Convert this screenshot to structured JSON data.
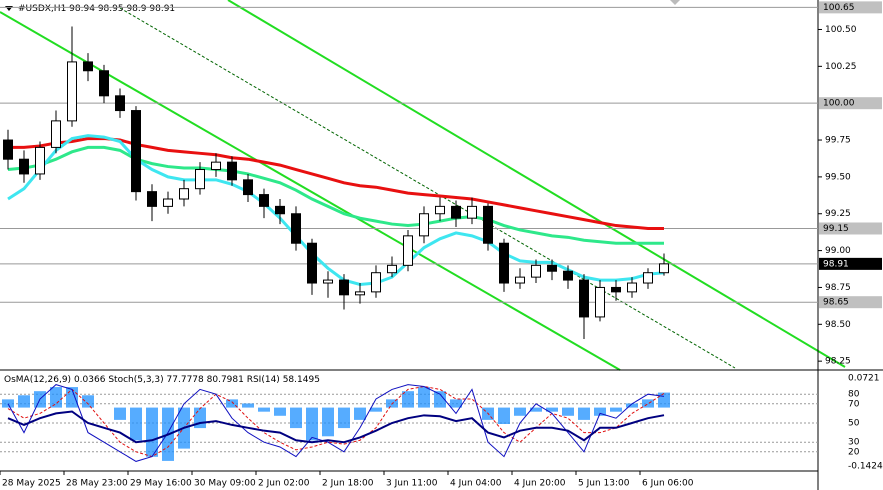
{
  "chart_data": {
    "type": "candlestick",
    "title": "#USDX,H1",
    "last_bar": [
      98.94,
      98.95,
      98.9,
      98.91
    ],
    "categories": [
      "28 May 2025",
      null,
      null,
      null,
      "28 May 23:00",
      null,
      null,
      null,
      "29 May 16:00",
      null,
      null,
      null,
      "30 May 09:00",
      null,
      null,
      null,
      "2 Jun 02:00",
      null,
      null,
      null,
      "2 Jun 18:00",
      null,
      null,
      null,
      "3 Jun 11:00",
      null,
      null,
      null,
      "4 Jun 04:00",
      null,
      null,
      null,
      "4 Jun 20:00",
      null,
      null,
      null,
      "5 Jun 13:00",
      null,
      null,
      null,
      "6 Jun 06:00",
      null
    ],
    "open": [
      99.75,
      99.62,
      99.52,
      99.7,
      99.88,
      100.28,
      100.22,
      100.05,
      99.95,
      99.4,
      99.3,
      99.35,
      99.42,
      99.55,
      99.6,
      99.48,
      99.38,
      99.3,
      99.25,
      99.05,
      98.78,
      98.8,
      98.7,
      98.72,
      98.85,
      98.9,
      99.1,
      99.25,
      99.3,
      99.22,
      99.3,
      99.05,
      98.78,
      98.82,
      98.9,
      98.86,
      98.8,
      98.55,
      98.75,
      98.72,
      98.78,
      98.85
    ],
    "high": [
      99.82,
      99.68,
      99.74,
      99.95,
      100.52,
      100.34,
      100.26,
      100.1,
      99.98,
      99.45,
      99.4,
      99.48,
      99.6,
      99.66,
      99.64,
      99.52,
      99.42,
      99.35,
      99.3,
      99.08,
      98.86,
      98.84,
      98.78,
      98.9,
      98.96,
      99.14,
      99.3,
      99.36,
      99.34,
      99.36,
      99.32,
      99.08,
      98.88,
      98.94,
      98.94,
      98.9,
      98.84,
      98.8,
      98.8,
      98.82,
      98.88,
      98.98
    ],
    "low": [
      99.55,
      99.46,
      99.48,
      99.66,
      99.84,
      100.15,
      100.0,
      99.9,
      99.34,
      99.2,
      99.25,
      99.3,
      99.38,
      99.5,
      99.44,
      99.33,
      99.22,
      99.18,
      99.0,
      98.7,
      98.68,
      98.6,
      98.64,
      98.68,
      98.82,
      98.86,
      99.05,
      99.2,
      99.16,
      99.18,
      99.0,
      98.72,
      98.74,
      98.78,
      98.8,
      98.74,
      98.4,
      98.52,
      98.66,
      98.68,
      98.74,
      98.83
    ],
    "close": [
      99.62,
      99.52,
      99.7,
      99.88,
      100.28,
      100.22,
      100.05,
      99.95,
      99.4,
      99.3,
      99.35,
      99.42,
      99.55,
      99.6,
      99.48,
      99.38,
      99.3,
      99.25,
      99.05,
      98.78,
      98.8,
      98.7,
      98.72,
      98.85,
      98.9,
      99.1,
      99.25,
      99.3,
      99.22,
      99.3,
      99.05,
      98.78,
      98.82,
      98.9,
      98.86,
      98.8,
      98.55,
      98.75,
      98.72,
      98.78,
      98.85,
      98.91
    ],
    "series": [
      {
        "color": "#e81010",
        "values": [
          99.7,
          99.7,
          99.71,
          99.73,
          99.74,
          99.76,
          99.76,
          99.75,
          99.72,
          99.7,
          99.68,
          99.67,
          99.66,
          99.65,
          99.63,
          99.62,
          99.6,
          99.58,
          99.55,
          99.52,
          99.49,
          99.46,
          99.44,
          99.43,
          99.41,
          99.39,
          99.38,
          99.37,
          99.36,
          99.35,
          99.33,
          99.31,
          99.29,
          99.27,
          99.25,
          99.23,
          99.21,
          99.19,
          99.17,
          99.16,
          99.15,
          99.15
        ]
      },
      {
        "color": "#2ee88a",
        "values": [
          99.55,
          99.56,
          99.58,
          99.62,
          99.67,
          99.7,
          99.7,
          99.68,
          99.62,
          99.59,
          99.57,
          99.56,
          99.56,
          99.55,
          99.54,
          99.52,
          99.49,
          99.46,
          99.41,
          99.35,
          99.3,
          99.25,
          99.22,
          99.2,
          99.18,
          99.17,
          99.18,
          99.2,
          99.22,
          99.23,
          99.21,
          99.17,
          99.14,
          99.12,
          99.1,
          99.09,
          99.07,
          99.06,
          99.05,
          99.05,
          99.05,
          99.05
        ]
      },
      {
        "color": "#3ee6f0",
        "values": [
          99.35,
          99.42,
          99.55,
          99.68,
          99.76,
          99.78,
          99.77,
          99.74,
          99.62,
          99.55,
          99.5,
          99.48,
          99.48,
          99.48,
          99.45,
          99.4,
          99.32,
          99.22,
          99.1,
          98.98,
          98.88,
          98.8,
          98.77,
          98.78,
          98.82,
          98.92,
          99.02,
          99.08,
          99.12,
          99.1,
          99.06,
          98.98,
          98.93,
          98.92,
          98.92,
          98.87,
          98.82,
          98.8,
          98.8,
          98.81,
          98.84,
          98.85
        ]
      }
    ],
    "ylim": [
      98.19,
      100.7
    ],
    "yticks": [
      98.25,
      {
        "value": 98.5,
        "label": "98.50"
      },
      98.75,
      {
        "value": 99.0,
        "label": "99.00"
      },
      99.25,
      {
        "value": 99.5,
        "label": "99.50"
      },
      99.75,
      100.25,
      {
        "value": 100.5,
        "label": "100.50"
      }
    ],
    "levels": [
      {
        "value": 100.65,
        "label": "100.65"
      },
      {
        "value": 100.0,
        "label": "100.00"
      },
      {
        "value": 99.15,
        "label": "99.15"
      },
      {
        "value": 98.91,
        "label": "98.91"
      },
      {
        "value": 98.65,
        "label": "98.65"
      }
    ],
    "current": 98.91,
    "indicator": {
      "osma_name": "OsMA(12,26,9)",
      "stoch_name": "Stoch(5,3,3)",
      "rsi_name": "RSI(14)",
      "osma_color": "#1e90ff",
      "stoch_color": "#1010c0",
      "signal_color": "#e01010",
      "rsi_color": "#000080",
      "osma": [
        0.02,
        0.03,
        0.04,
        0.05,
        0.05,
        0.03,
        0.0,
        -0.03,
        -0.08,
        -0.12,
        -0.13,
        -0.1,
        -0.05,
        0.0,
        0.02,
        0.01,
        -0.01,
        -0.02,
        -0.05,
        -0.08,
        -0.07,
        -0.05,
        -0.03,
        -0.01,
        0.02,
        0.04,
        0.05,
        0.04,
        0.02,
        0.0,
        -0.03,
        -0.04,
        -0.02,
        -0.01,
        -0.01,
        -0.02,
        -0.03,
        -0.02,
        -0.01,
        0.01,
        0.02,
        0.0366
      ],
      "stoch": [
        70,
        40,
        75,
        90,
        85,
        40,
        30,
        20,
        10,
        15,
        40,
        70,
        85,
        80,
        55,
        40,
        30,
        25,
        15,
        35,
        30,
        20,
        45,
        75,
        85,
        90,
        88,
        80,
        60,
        85,
        30,
        15,
        50,
        70,
        60,
        40,
        20,
        60,
        55,
        70,
        80,
        77.7778
      ],
      "signal": [
        65,
        55,
        60,
        70,
        85,
        70,
        50,
        30,
        20,
        15,
        25,
        45,
        65,
        80,
        72,
        55,
        40,
        30,
        22,
        25,
        30,
        28,
        32,
        45,
        70,
        85,
        88,
        85,
        75,
        75,
        60,
        40,
        30,
        45,
        60,
        55,
        40,
        40,
        45,
        60,
        70,
        80.7981
      ],
      "rsi": [
        55,
        48,
        55,
        60,
        62,
        50,
        45,
        40,
        30,
        32,
        38,
        45,
        50,
        52,
        48,
        45,
        42,
        40,
        32,
        30,
        32,
        30,
        35,
        42,
        50,
        55,
        58,
        57,
        52,
        55,
        40,
        35,
        42,
        45,
        45,
        42,
        32,
        45,
        45,
        50,
        55,
        58.1495
      ],
      "ylim": [
        -0.1424,
        0.0721
      ],
      "y2lim": [
        0,
        100
      ],
      "y2ticks": [
        20,
        30,
        50,
        70,
        80
      ]
    }
  }
}
